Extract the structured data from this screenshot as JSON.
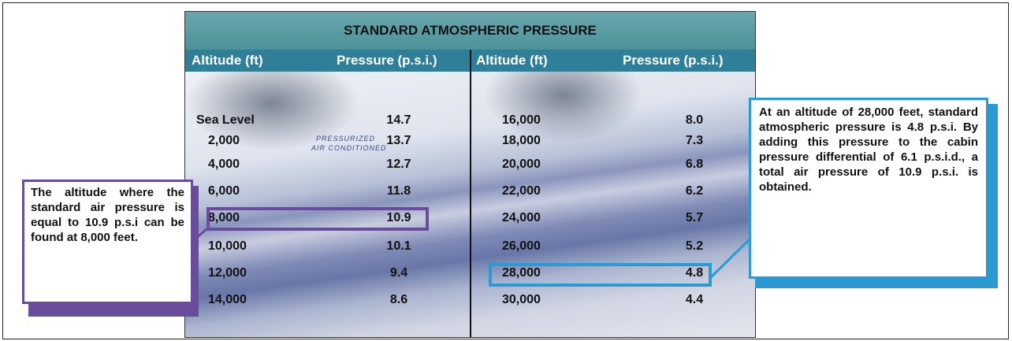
{
  "table": {
    "title": "STANDARD ATMOSPHERIC PRESSURE",
    "headers": [
      "Altitude (ft)",
      "Pressure (p.s.i.)",
      "Altitude (ft)",
      "Pressure (p.s.i.)"
    ],
    "rows": [
      [
        "Sea Level",
        "14.7",
        "16,000",
        "8.0"
      ],
      [
        "2,000",
        "13.7",
        "18,000",
        "7.3"
      ],
      [
        "4,000",
        "12.7",
        "20,000",
        "6.8"
      ],
      [
        "6,000",
        "11.8",
        "22,000",
        "6.2"
      ],
      [
        "8,000",
        "10.9",
        "24,000",
        "5.7"
      ],
      [
        "10,000",
        "10.1",
        "26,000",
        "5.2"
      ],
      [
        "12,000",
        "9.4",
        "28,000",
        "4.8"
      ],
      [
        "14,000",
        "8.6",
        "30,000",
        "4.4"
      ]
    ]
  },
  "photo_text": [
    "PRESSURIZED",
    "AIR CONDITIONED"
  ],
  "callouts": {
    "left": "The altitude where the standard air pressure is equal to 10.9 p.s.i can be found at 8,000 feet.",
    "right": "At an altitude of 28,000 feet, standard atmospheric pressure is 4.8 p.s.i. By adding this pressure to the cabin pressure differential of 6.1 p.s.i.d., a total air pressure of 10.9 p.s.i. is obtained."
  }
}
